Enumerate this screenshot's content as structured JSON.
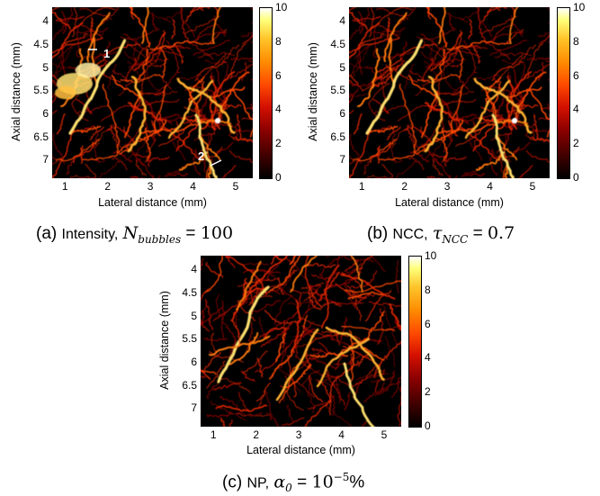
{
  "panels": [
    {
      "id": "a",
      "caption": {
        "label": "(a)",
        "method": "Intensity,",
        "symbol": "N",
        "sub": "bubbles",
        "rel": "=",
        "value": "100",
        "sup": "",
        "suffix": ""
      },
      "annotations": [
        "1",
        "2"
      ]
    },
    {
      "id": "b",
      "caption": {
        "label": "(b)",
        "method": "NCC,",
        "symbol": "τ",
        "sub": "NCC",
        "rel": "=",
        "value": "0.7",
        "sup": "",
        "suffix": ""
      },
      "annotations": []
    },
    {
      "id": "c",
      "caption": {
        "label": "(c)",
        "method": "NP,",
        "symbol": "α",
        "sub": "0",
        "rel": "=",
        "value": "10",
        "sup": "−5",
        "suffix": "%"
      },
      "annotations": []
    }
  ],
  "axes": {
    "xlabel": "Lateral distance (mm)",
    "ylabel": "Axial distance (mm)",
    "xticks": [
      "1",
      "2",
      "3",
      "4",
      "5"
    ],
    "yticks": [
      "4",
      "4.5",
      "5",
      "5.5",
      "6",
      "6.5",
      "7"
    ],
    "xlim": [
      0.7,
      5.4
    ],
    "ylim": [
      3.7,
      7.4
    ]
  },
  "colorbar": {
    "ticks": [
      "0",
      "2",
      "4",
      "6",
      "8",
      "10"
    ],
    "range": [
      0,
      10
    ],
    "colormap": "hot"
  },
  "colors": {
    "background": "#000000",
    "vessel": "#ff3a00",
    "highlight": "#ffe680"
  }
}
